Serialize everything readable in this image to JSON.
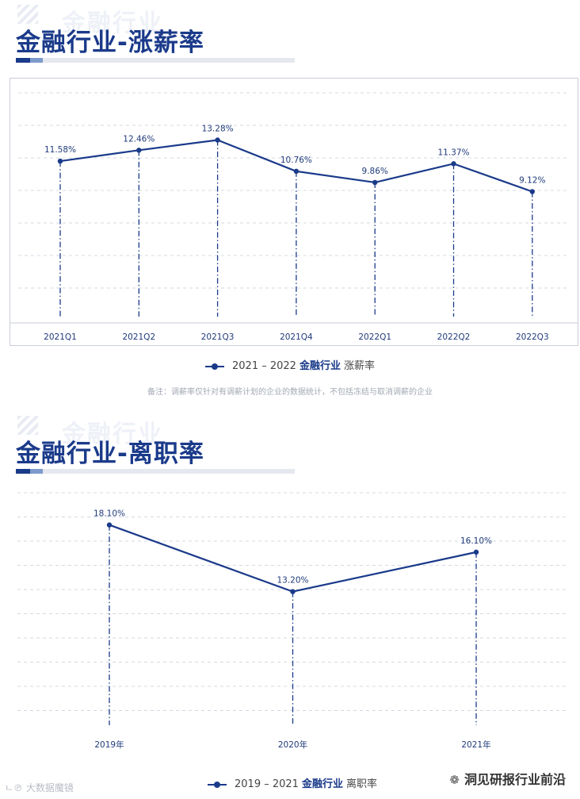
{
  "sections": [
    {
      "title": "金融行业-涨薪率",
      "watermark": "金融行业",
      "legend": {
        "range": "2021 – 2022",
        "industry": "金融行业",
        "metric": "涨薪率"
      },
      "footnote": "备注：调薪率仅针对有调薪计划的企业的数据统计，不包括冻结与取消调薪的企业"
    },
    {
      "title": "金融行业-离职率",
      "watermark": "金融行业",
      "legend": {
        "range": "2019 – 2021",
        "industry": "金融行业",
        "metric": "离职率"
      }
    }
  ],
  "brand": {
    "icon": "wechat-icon",
    "name": "洞见研报行业前沿"
  },
  "corner_mark": "ㄴ℗ 大数据魔镜",
  "colors": {
    "line": "#1a3a8a",
    "grid": "#c9ced8",
    "label": "#1f3a7a"
  },
  "chart_data": [
    {
      "type": "line",
      "categories": [
        "2021Q1",
        "2021Q2",
        "2021Q3",
        "2021Q4",
        "2022Q1",
        "2022Q2",
        "2022Q3"
      ],
      "series": [
        {
          "name": "2021 – 2022 金融行业 涨薪率",
          "values": [
            11.58,
            12.46,
            13.28,
            10.76,
            9.86,
            11.37,
            9.12
          ]
        }
      ],
      "data_labels": [
        "11.58%",
        "12.46%",
        "13.28%",
        "10.76%",
        "9.86%",
        "11.37%",
        "9.12%"
      ],
      "title": "金融行业-涨薪率",
      "ylim": [
        0,
        16
      ],
      "drop_lines": true,
      "grid": "horizontal-dashed",
      "legend_position": "bottom-center"
    },
    {
      "type": "line",
      "categories": [
        "2019年",
        "2020年",
        "2021年"
      ],
      "series": [
        {
          "name": "2019 – 2021 金融行业 离职率",
          "values": [
            18.1,
            13.2,
            16.1
          ]
        }
      ],
      "data_labels": [
        "18.10%",
        "13.20%",
        "16.10%"
      ],
      "title": "金融行业-离职率",
      "ylim": [
        0,
        20
      ],
      "drop_lines": true,
      "grid": "horizontal-dashed",
      "legend_position": "bottom-center"
    }
  ]
}
